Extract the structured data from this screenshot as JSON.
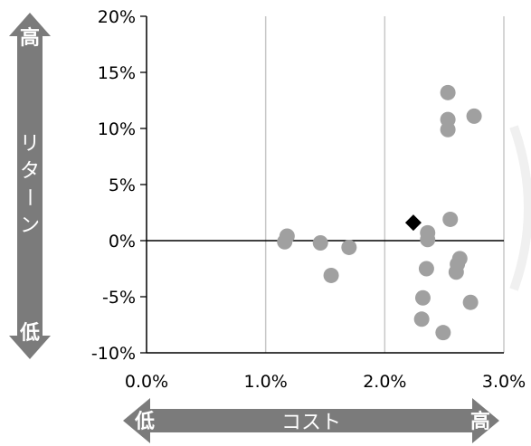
{
  "chart_data": {
    "type": "scatter",
    "xlim": [
      0.0,
      3.0
    ],
    "ylim": [
      -10,
      20
    ],
    "x_unit": "%",
    "y_unit": "%",
    "x_ticks": [
      "0.0%",
      "1.0%",
      "2.0%",
      "3.0%"
    ],
    "y_ticks": [
      "20%",
      "15%",
      "10%",
      "5%",
      "0%",
      "-5%",
      "-10%"
    ],
    "grid": true,
    "colors": {
      "points": "#a0a0a0",
      "highlight": "#000000",
      "arrows": "#7b7b7b",
      "grid": "#c8c8c8"
    },
    "series": [
      {
        "marker": "circle",
        "points": [
          [
            1.18,
            0.4
          ],
          [
            1.16,
            -0.1
          ],
          [
            1.46,
            -0.2
          ],
          [
            1.7,
            -0.6
          ],
          [
            1.55,
            -3.1
          ],
          [
            2.53,
            13.2
          ],
          [
            2.53,
            10.8
          ],
          [
            2.75,
            11.1
          ],
          [
            2.53,
            9.9
          ],
          [
            2.55,
            1.9
          ],
          [
            2.36,
            0.7
          ],
          [
            2.36,
            0.1
          ],
          [
            2.63,
            -1.6
          ],
          [
            2.61,
            -2.1
          ],
          [
            2.6,
            -2.8
          ],
          [
            2.35,
            -2.5
          ],
          [
            2.32,
            -5.1
          ],
          [
            2.31,
            -7.0
          ],
          [
            2.72,
            -5.5
          ],
          [
            2.49,
            -8.2
          ]
        ]
      },
      {
        "marker": "diamond",
        "points": [
          [
            2.24,
            1.6
          ]
        ]
      }
    ]
  },
  "axis_arrows": {
    "x": {
      "label": "コスト",
      "low": "低",
      "high": "高"
    },
    "y": {
      "label": [
        "リ",
        "タ",
        "ー",
        "ン"
      ],
      "low": "低",
      "high": "高"
    }
  }
}
